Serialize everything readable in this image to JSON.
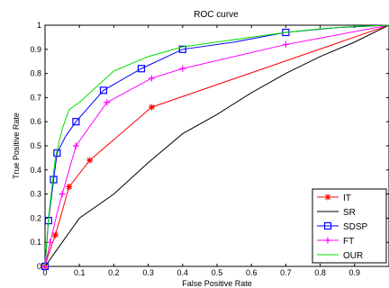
{
  "chart_data": {
    "type": "line",
    "title": "ROC curve",
    "xlabel": "False Positive Rate",
    "ylabel": "True Positive Rate",
    "xlim": [
      0,
      1
    ],
    "ylim": [
      0,
      1
    ],
    "xticks": [
      "0",
      "0.1",
      "0.2",
      "0.3",
      "0.4",
      "0.5",
      "0.6",
      "0.7",
      "0.8",
      "0.9"
    ],
    "yticks": [
      "0",
      "0.1",
      "0.2",
      "0.3",
      "0.4",
      "0.5",
      "0.6",
      "0.7",
      "0.8",
      "0.9",
      "1"
    ],
    "grid": false,
    "legend_position": "bottom-right",
    "series": [
      {
        "name": "IT",
        "color": "#ff0000",
        "marker": "star",
        "x": [
          0,
          0.01,
          0.03,
          0.07,
          0.13,
          0.31,
          1.0
        ],
        "y": [
          0,
          0.05,
          0.13,
          0.33,
          0.44,
          0.66,
          1.0
        ],
        "markers": [
          [
            0,
            0
          ],
          [
            0.03,
            0.13
          ],
          [
            0.07,
            0.33
          ],
          [
            0.13,
            0.44
          ],
          [
            0.31,
            0.66
          ]
        ]
      },
      {
        "name": "SR",
        "color": "#000000",
        "marker": "none",
        "x": [
          0,
          0.02,
          0.05,
          0.1,
          0.2,
          0.3,
          0.4,
          0.5,
          0.6,
          0.7,
          0.8,
          0.9,
          1.0
        ],
        "y": [
          0,
          0.04,
          0.1,
          0.2,
          0.3,
          0.43,
          0.55,
          0.63,
          0.72,
          0.8,
          0.87,
          0.93,
          1.0
        ],
        "markers": []
      },
      {
        "name": "SDSP",
        "color": "#0000ff",
        "marker": "square",
        "x": [
          0,
          0.01,
          0.025,
          0.035,
          0.06,
          0.09,
          0.17,
          0.28,
          0.4,
          0.55,
          0.7,
          0.85,
          1.0
        ],
        "y": [
          0,
          0.19,
          0.36,
          0.47,
          0.54,
          0.6,
          0.73,
          0.82,
          0.9,
          0.93,
          0.97,
          0.99,
          1.0
        ],
        "markers": [
          [
            0,
            0
          ],
          [
            0.01,
            0.19
          ],
          [
            0.025,
            0.36
          ],
          [
            0.035,
            0.47
          ],
          [
            0.09,
            0.6
          ],
          [
            0.17,
            0.73
          ],
          [
            0.28,
            0.82
          ],
          [
            0.4,
            0.9
          ],
          [
            0.7,
            0.97
          ]
        ]
      },
      {
        "name": "FT",
        "color": "#ff00ff",
        "marker": "plus",
        "x": [
          0,
          0.015,
          0.035,
          0.05,
          0.09,
          0.18,
          0.31,
          0.4,
          0.55,
          0.7,
          0.85,
          1.0
        ],
        "y": [
          0,
          0.1,
          0.22,
          0.3,
          0.5,
          0.68,
          0.78,
          0.82,
          0.87,
          0.92,
          0.96,
          1.0
        ],
        "markers": [
          [
            0,
            0
          ],
          [
            0.015,
            0.1
          ],
          [
            0.05,
            0.3
          ],
          [
            0.09,
            0.5
          ],
          [
            0.18,
            0.68
          ],
          [
            0.31,
            0.78
          ],
          [
            0.4,
            0.82
          ],
          [
            0.7,
            0.92
          ]
        ]
      },
      {
        "name": "OUR",
        "color": "#00dd00",
        "marker": "none",
        "x": [
          0,
          0.01,
          0.03,
          0.05,
          0.07,
          0.1,
          0.2,
          0.3,
          0.4,
          0.5,
          0.6,
          0.7,
          0.8,
          0.9,
          1.0
        ],
        "y": [
          0,
          0.2,
          0.45,
          0.57,
          0.65,
          0.68,
          0.81,
          0.87,
          0.91,
          0.93,
          0.95,
          0.97,
          0.985,
          0.995,
          1.0
        ],
        "markers": []
      }
    ]
  }
}
